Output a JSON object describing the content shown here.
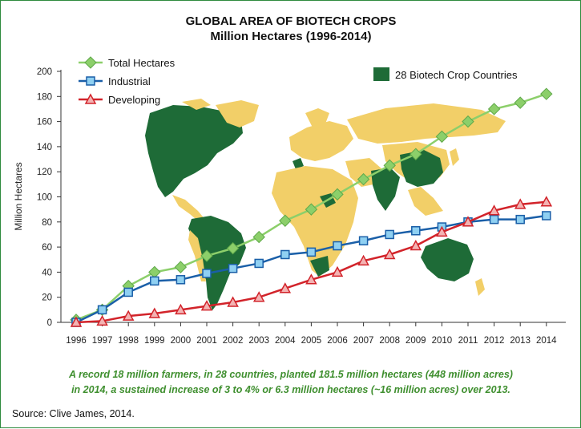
{
  "chart_data": {
    "type": "line",
    "title": "GLOBAL AREA OF BIOTECH CROPS",
    "subtitle": "Million Hectares (1996-2014)",
    "ylabel": "Million Hectares",
    "xlabel": "",
    "ylim": [
      0,
      200
    ],
    "yticks": [
      0,
      20,
      40,
      60,
      80,
      100,
      120,
      140,
      160,
      180,
      200
    ],
    "x": [
      "1996",
      "1997",
      "1998",
      "1999",
      "2000",
      "2001",
      "2002",
      "2003",
      "2004",
      "2005",
      "2006",
      "2007",
      "2008",
      "2009",
      "2010",
      "2011",
      "2012",
      "2013",
      "2014"
    ],
    "series": [
      {
        "name": "Total Hectares",
        "color": "#8ccf6a",
        "marker": "diamond",
        "values": [
          2,
          10,
          29,
          40,
          44,
          53,
          59,
          68,
          81,
          90,
          102,
          114,
          125,
          134,
          148,
          160,
          170,
          175,
          182
        ]
      },
      {
        "name": "Industrial",
        "color": "#1a5fa8",
        "marker": "square",
        "values": [
          0,
          10,
          24,
          33,
          34,
          39,
          43,
          47,
          54,
          56,
          61,
          65,
          70,
          73,
          76,
          80,
          82,
          82,
          85
        ]
      },
      {
        "name": "Developing",
        "color": "#d2232a",
        "marker": "triangle",
        "values": [
          0,
          1,
          5,
          7,
          10,
          13,
          16,
          20,
          27,
          34,
          40,
          49,
          54,
          61,
          72,
          80,
          89,
          94,
          96
        ]
      }
    ],
    "legend_position": "top-left",
    "grid": false,
    "map_legend": {
      "label": "28 Biotech Crop Countries",
      "color": "#1e6b37"
    },
    "map_colors": {
      "biotech": "#1e6b37",
      "other": "#f2cf68"
    }
  },
  "caption": {
    "line1": "A record 18 million farmers, in 28 countries, planted 181.5 million hectares (448 million acres)",
    "line2": "in 2014, a sustained increase of 3 to 4% or 6.3 million hectares (~16 million acres) over 2013."
  },
  "source": "Source: Clive James, 2014."
}
